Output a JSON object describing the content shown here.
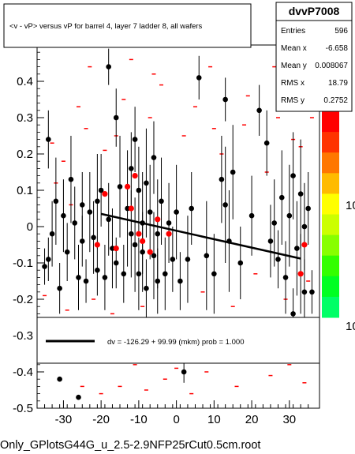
{
  "chart_data": {
    "type": "scatter",
    "title": "<v - vP>       versus   vP for barrel 4, layer 7 ladder 8, all wafers",
    "xlabel": "",
    "ylabel": "",
    "xlim": [
      -37,
      38
    ],
    "ylim": [
      -0.5,
      0.5
    ],
    "x_ticks": [
      -30,
      -20,
      -10,
      0,
      10,
      20,
      30
    ],
    "y_ticks": [
      -0.5,
      -0.4,
      -0.3,
      -0.2,
      -0.1,
      0,
      0.1,
      0.2,
      0.3,
      0.4
    ],
    "y_tick_labels": [
      "-0.5",
      "-0.4",
      "-0.3",
      "-0.2",
      "-0.1",
      "0",
      "0.1",
      "0.2",
      "0.3",
      "0.4"
    ],
    "stats": {
      "name": "dvvP7008",
      "rows": [
        {
          "label": "Entries",
          "value": "596"
        },
        {
          "label": "Mean x",
          "value": "-6.658"
        },
        {
          "label": "Mean y",
          "value": "0.008067"
        },
        {
          "label": "RMS x",
          "value": "18.79"
        },
        {
          "label": "RMS y",
          "value": "0.2752"
        }
      ]
    },
    "fit": {
      "label": "dv = -126.29 + 99.99 (mkm) prob = 1.000",
      "line": [
        [
          -20,
          0.035
        ],
        [
          33,
          -0.088
        ]
      ],
      "color": "#000000"
    },
    "palette_labels": [
      "10",
      "10"
    ],
    "palette_colors": [
      "#ff0000",
      "#ff3300",
      "#ff7700",
      "#ffbb00",
      "#ffff00",
      "#ccff00",
      "#88ff00",
      "#33ff00",
      "#00ff22",
      "#00ff66"
    ],
    "footer": "Only_GPlotsG44G_u_2.5-2.9NFP25rCut0.5cm.root",
    "black_points": [
      {
        "x": -35,
        "y": -0.11,
        "err": 0.05
      },
      {
        "x": -34,
        "y": 0.24,
        "err": 0.08
      },
      {
        "x": -34,
        "y": -0.09,
        "err": 0.06
      },
      {
        "x": -33,
        "y": -0.02,
        "err": 0.09
      },
      {
        "x": -32,
        "y": 0.07,
        "err": 0.12
      },
      {
        "x": -31,
        "y": -0.17,
        "err": 0.07
      },
      {
        "x": -30,
        "y": 0.03,
        "err": 0.1
      },
      {
        "x": -29,
        "y": -0.07,
        "err": 0.08
      },
      {
        "x": -28,
        "y": 0.13,
        "err": 0.12
      },
      {
        "x": -27,
        "y": 0.01,
        "err": 0.1
      },
      {
        "x": -26,
        "y": -0.14,
        "err": 0.09
      },
      {
        "x": -25,
        "y": 0.06,
        "err": 0.09
      },
      {
        "x": -25,
        "y": -0.04,
        "err": 0.07
      },
      {
        "x": -24,
        "y": -0.15,
        "err": 0.06
      },
      {
        "x": -23,
        "y": 0.04,
        "err": 0.11
      },
      {
        "x": -22,
        "y": -0.03,
        "err": 0.1
      },
      {
        "x": -21,
        "y": -0.12,
        "err": 0.07
      },
      {
        "x": -21,
        "y": 0.07,
        "err": 0.13
      },
      {
        "x": -20,
        "y": 0.1,
        "err": 0.1
      },
      {
        "x": -19,
        "y": -0.14,
        "err": 0.09
      },
      {
        "x": -18,
        "y": 0.44,
        "err": 0.05
      },
      {
        "x": -18,
        "y": 0.02,
        "err": 0.1
      },
      {
        "x": -17,
        "y": -0.06,
        "err": 0.11
      },
      {
        "x": -16,
        "y": 0.3,
        "err": 0.08
      },
      {
        "x": -16,
        "y": -0.1,
        "err": 0.07
      },
      {
        "x": -15,
        "y": 0.11,
        "err": 0.14
      },
      {
        "x": -14,
        "y": -0.13,
        "err": 0.08
      },
      {
        "x": -13,
        "y": 0.05,
        "err": 0.16
      },
      {
        "x": -12,
        "y": -0.02,
        "err": 0.12
      },
      {
        "x": -12,
        "y": 0.16,
        "err": 0.1
      },
      {
        "x": -11,
        "y": 0.24,
        "err": 0.09
      },
      {
        "x": -11,
        "y": -0.05,
        "err": 0.13
      },
      {
        "x": -10,
        "y": -0.13,
        "err": 0.1
      },
      {
        "x": -10,
        "y": 0.1,
        "err": 0.12
      },
      {
        "x": -9,
        "y": 0.01,
        "err": 0.14
      },
      {
        "x": -9,
        "y": -0.07,
        "err": 0.11
      },
      {
        "x": -8,
        "y": 0.12,
        "err": 0.15
      },
      {
        "x": -8,
        "y": -0.17,
        "err": 0.08
      },
      {
        "x": -7,
        "y": 0.04,
        "err": 0.13
      },
      {
        "x": -6,
        "y": -0.08,
        "err": 0.12
      },
      {
        "x": -6,
        "y": 0.19,
        "err": 0.1
      },
      {
        "x": -5,
        "y": -0.02,
        "err": 0.15
      },
      {
        "x": -4,
        "y": 0.07,
        "err": 0.12
      },
      {
        "x": -3,
        "y": -0.13,
        "err": 0.1
      },
      {
        "x": -2,
        "y": 0.01,
        "err": 0.11
      },
      {
        "x": -1,
        "y": -0.09,
        "err": 0.09
      },
      {
        "x": 0,
        "y": 0.04,
        "err": 0.13
      },
      {
        "x": 1,
        "y": -0.15,
        "err": 0.08
      },
      {
        "x": 2,
        "y": -0.4,
        "err": 0.03
      },
      {
        "x": 4,
        "y": 0.05,
        "err": 0.1
      },
      {
        "x": 6,
        "y": 0.41,
        "err": 0.06
      },
      {
        "x": 8,
        "y": -0.08,
        "err": 0.15
      },
      {
        "x": 10,
        "y": -0.13,
        "err": 0.11
      },
      {
        "x": 12,
        "y": 0.13,
        "err": 0.12
      },
      {
        "x": 13,
        "y": 0.06,
        "err": 0.16
      },
      {
        "x": 14,
        "y": -0.04,
        "err": 0.14
      },
      {
        "x": 15,
        "y": 0.15,
        "err": 0.13
      },
      {
        "x": 17,
        "y": -0.1,
        "err": 0.1
      },
      {
        "x": 20,
        "y": 0.03,
        "err": 0.11
      },
      {
        "x": 22,
        "y": 0.32,
        "err": 0.07
      },
      {
        "x": 24,
        "y": 0.23,
        "err": 0.09
      },
      {
        "x": 25,
        "y": -0.04,
        "err": 0.1
      },
      {
        "x": 26,
        "y": 0.01,
        "err": 0.12
      },
      {
        "x": 27,
        "y": -0.09,
        "err": 0.08
      },
      {
        "x": 28,
        "y": 0.08,
        "err": 0.13
      },
      {
        "x": 29,
        "y": -0.14,
        "err": 0.1
      },
      {
        "x": 30,
        "y": 0.03,
        "err": 0.14
      },
      {
        "x": 31,
        "y": 0.14,
        "err": 0.12
      },
      {
        "x": 31,
        "y": -0.24,
        "err": 0.07
      },
      {
        "x": 32,
        "y": 0.38,
        "err": 0.05
      },
      {
        "x": 32,
        "y": -0.06,
        "err": 0.13
      },
      {
        "x": 33,
        "y": 0.09,
        "err": 0.15
      },
      {
        "x": 33,
        "y": -0.13,
        "err": 0.11
      },
      {
        "x": 34,
        "y": 0.0,
        "err": 0.12
      },
      {
        "x": 34,
        "y": -0.18,
        "err": 0.09
      },
      {
        "x": 35,
        "y": 0.05,
        "err": 0.1
      },
      {
        "x": 36,
        "y": -0.18,
        "err": 0.06
      },
      {
        "x": -26,
        "y": -0.47,
        "err": 0.0
      },
      {
        "x": -31,
        "y": -0.42,
        "err": 0.0
      },
      {
        "x": 13,
        "y": 0.35,
        "err": 0.06
      },
      {
        "x": 3,
        "y": -0.09,
        "err": 0.12
      },
      {
        "x": -5,
        "y": -0.15,
        "err": 0.09
      }
    ],
    "red_points": [
      {
        "x": -21,
        "y": -0.05
      },
      {
        "x": -19,
        "y": 0.09
      },
      {
        "x": -16,
        "y": -0.06
      },
      {
        "x": -13,
        "y": 0.11
      },
      {
        "x": -12,
        "y": 0.05
      },
      {
        "x": -11,
        "y": 0.14
      },
      {
        "x": -10,
        "y": -0.02
      },
      {
        "x": -9,
        "y": -0.04
      },
      {
        "x": -7,
        "y": -0.07
      },
      {
        "x": -5,
        "y": 0.02
      },
      {
        "x": -2,
        "y": -0.02
      },
      {
        "x": 33,
        "y": -0.13
      },
      {
        "x": 34,
        "y": -0.05
      }
    ],
    "red_dashes": [
      {
        "x": -33,
        "y": 0.23
      },
      {
        "x": -30,
        "y": 0.18
      },
      {
        "x": -28,
        "y": 0.06
      },
      {
        "x": -26,
        "y": 0.33
      },
      {
        "x": -24,
        "y": 0.27
      },
      {
        "x": -22,
        "y": -0.2
      },
      {
        "x": -19,
        "y": 0.21
      },
      {
        "x": -17,
        "y": -0.24
      },
      {
        "x": -14,
        "y": 0.35
      },
      {
        "x": -12,
        "y": 0.46
      },
      {
        "x": -9,
        "y": -0.22
      },
      {
        "x": -7,
        "y": 0.3
      },
      {
        "x": -4,
        "y": 0.39
      },
      {
        "x": -1,
        "y": -0.27
      },
      {
        "x": 2,
        "y": 0.25
      },
      {
        "x": 5,
        "y": 0.33
      },
      {
        "x": 7,
        "y": -0.18
      },
      {
        "x": 10,
        "y": 0.27
      },
      {
        "x": 12,
        "y": 0.2
      },
      {
        "x": 15,
        "y": -0.22
      },
      {
        "x": 18,
        "y": 0.28
      },
      {
        "x": 21,
        "y": -0.13
      },
      {
        "x": 24,
        "y": 0.15
      },
      {
        "x": 27,
        "y": 0.3
      },
      {
        "x": 29,
        "y": -0.2
      },
      {
        "x": 31,
        "y": 0.24
      },
      {
        "x": 33,
        "y": 0.22
      },
      {
        "x": 35,
        "y": -0.15
      },
      {
        "x": 36,
        "y": 0.3
      },
      {
        "x": -35,
        "y": -0.19
      },
      {
        "x": -32,
        "y": 0.12
      },
      {
        "x": -29,
        "y": -0.23
      },
      {
        "x": -25,
        "y": -0.44
      },
      {
        "x": -20,
        "y": -0.46
      },
      {
        "x": -15,
        "y": -0.44
      },
      {
        "x": -11,
        "y": -0.38
      },
      {
        "x": -8,
        "y": -0.45
      },
      {
        "x": -3,
        "y": -0.42
      },
      {
        "x": 0,
        "y": -0.39
      },
      {
        "x": 4,
        "y": -0.46
      },
      {
        "x": 8,
        "y": -0.4
      },
      {
        "x": 16,
        "y": -0.44
      },
      {
        "x": 25,
        "y": -0.41
      },
      {
        "x": 30,
        "y": -0.38
      },
      {
        "x": 34,
        "y": -0.43
      },
      {
        "x": -23,
        "y": 0.44
      },
      {
        "x": -16,
        "y": 0.25
      },
      {
        "x": -6,
        "y": 0.42
      },
      {
        "x": 9,
        "y": 0.44
      },
      {
        "x": 19,
        "y": 0.36
      },
      {
        "x": 26,
        "y": 0.44
      }
    ]
  }
}
